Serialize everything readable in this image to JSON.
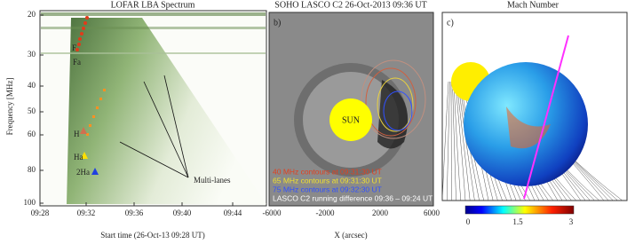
{
  "panels": [
    {
      "title": "LOFAR LBA Spectrum",
      "y_label": "Frequency [MHz]",
      "x_label": "Start time (26-Oct-13 09:28 UT)",
      "yticks": [
        "20",
        "30",
        "40",
        "50",
        "60",
        "80",
        "100"
      ],
      "xticks": [
        "09:28",
        "09:32",
        "09:36",
        "09:40",
        "09:44"
      ],
      "annotations": [
        "F",
        "Fa",
        "H",
        "Ha",
        "2Ha",
        "Multi-lanes"
      ]
    },
    {
      "title": "SOHO LASCO C2 26-Oct-2013 09:36 UT",
      "label": "b)",
      "sun": "SUN",
      "x_label": "X (arcsec)",
      "xticks": [
        "-6000",
        "-2000",
        "2000",
        "6000"
      ],
      "legend": [
        "40 MHz contours at 09:31:30 UT",
        "65 MHz contours at 09:31:30 UT",
        "75 MHz contours at 09:32:30 UT",
        "LASCO C2 running difference 09:36 – 09:24 UT"
      ]
    },
    {
      "title": "Mach Number",
      "label": "c)",
      "colorbar_ticks": [
        "0",
        "1.5",
        "3"
      ]
    }
  ]
}
